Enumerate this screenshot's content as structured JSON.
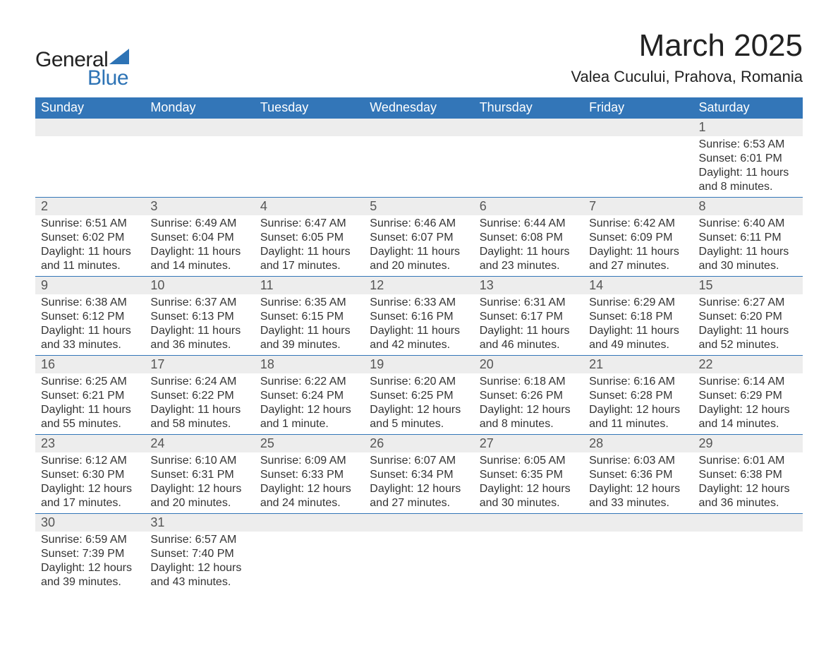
{
  "logo": {
    "text_general": "General",
    "text_blue": "Blue",
    "shape_color": "#2d73b5",
    "general_color": "#222222",
    "blue_color": "#2d73b5"
  },
  "header": {
    "month_title": "March 2025",
    "location": "Valea Cucului, Prahova, Romania",
    "title_fontsize": 44,
    "location_fontsize": 22,
    "title_color": "#222222"
  },
  "calendar": {
    "header_bg": "#3376b8",
    "header_fg": "#ffffff",
    "daynum_bg": "#ededed",
    "daynum_fg": "#555555",
    "border_color": "#3376b8",
    "text_color": "#333333",
    "days_of_week": [
      "Sunday",
      "Monday",
      "Tuesday",
      "Wednesday",
      "Thursday",
      "Friday",
      "Saturday"
    ],
    "weeks": [
      [
        null,
        null,
        null,
        null,
        null,
        null,
        {
          "n": "1",
          "sunrise": "Sunrise: 6:53 AM",
          "sunset": "Sunset: 6:01 PM",
          "daylight": "Daylight: 11 hours and 8 minutes."
        }
      ],
      [
        {
          "n": "2",
          "sunrise": "Sunrise: 6:51 AM",
          "sunset": "Sunset: 6:02 PM",
          "daylight": "Daylight: 11 hours and 11 minutes."
        },
        {
          "n": "3",
          "sunrise": "Sunrise: 6:49 AM",
          "sunset": "Sunset: 6:04 PM",
          "daylight": "Daylight: 11 hours and 14 minutes."
        },
        {
          "n": "4",
          "sunrise": "Sunrise: 6:47 AM",
          "sunset": "Sunset: 6:05 PM",
          "daylight": "Daylight: 11 hours and 17 minutes."
        },
        {
          "n": "5",
          "sunrise": "Sunrise: 6:46 AM",
          "sunset": "Sunset: 6:07 PM",
          "daylight": "Daylight: 11 hours and 20 minutes."
        },
        {
          "n": "6",
          "sunrise": "Sunrise: 6:44 AM",
          "sunset": "Sunset: 6:08 PM",
          "daylight": "Daylight: 11 hours and 23 minutes."
        },
        {
          "n": "7",
          "sunrise": "Sunrise: 6:42 AM",
          "sunset": "Sunset: 6:09 PM",
          "daylight": "Daylight: 11 hours and 27 minutes."
        },
        {
          "n": "8",
          "sunrise": "Sunrise: 6:40 AM",
          "sunset": "Sunset: 6:11 PM",
          "daylight": "Daylight: 11 hours and 30 minutes."
        }
      ],
      [
        {
          "n": "9",
          "sunrise": "Sunrise: 6:38 AM",
          "sunset": "Sunset: 6:12 PM",
          "daylight": "Daylight: 11 hours and 33 minutes."
        },
        {
          "n": "10",
          "sunrise": "Sunrise: 6:37 AM",
          "sunset": "Sunset: 6:13 PM",
          "daylight": "Daylight: 11 hours and 36 minutes."
        },
        {
          "n": "11",
          "sunrise": "Sunrise: 6:35 AM",
          "sunset": "Sunset: 6:15 PM",
          "daylight": "Daylight: 11 hours and 39 minutes."
        },
        {
          "n": "12",
          "sunrise": "Sunrise: 6:33 AM",
          "sunset": "Sunset: 6:16 PM",
          "daylight": "Daylight: 11 hours and 42 minutes."
        },
        {
          "n": "13",
          "sunrise": "Sunrise: 6:31 AM",
          "sunset": "Sunset: 6:17 PM",
          "daylight": "Daylight: 11 hours and 46 minutes."
        },
        {
          "n": "14",
          "sunrise": "Sunrise: 6:29 AM",
          "sunset": "Sunset: 6:18 PM",
          "daylight": "Daylight: 11 hours and 49 minutes."
        },
        {
          "n": "15",
          "sunrise": "Sunrise: 6:27 AM",
          "sunset": "Sunset: 6:20 PM",
          "daylight": "Daylight: 11 hours and 52 minutes."
        }
      ],
      [
        {
          "n": "16",
          "sunrise": "Sunrise: 6:25 AM",
          "sunset": "Sunset: 6:21 PM",
          "daylight": "Daylight: 11 hours and 55 minutes."
        },
        {
          "n": "17",
          "sunrise": "Sunrise: 6:24 AM",
          "sunset": "Sunset: 6:22 PM",
          "daylight": "Daylight: 11 hours and 58 minutes."
        },
        {
          "n": "18",
          "sunrise": "Sunrise: 6:22 AM",
          "sunset": "Sunset: 6:24 PM",
          "daylight": "Daylight: 12 hours and 1 minute."
        },
        {
          "n": "19",
          "sunrise": "Sunrise: 6:20 AM",
          "sunset": "Sunset: 6:25 PM",
          "daylight": "Daylight: 12 hours and 5 minutes."
        },
        {
          "n": "20",
          "sunrise": "Sunrise: 6:18 AM",
          "sunset": "Sunset: 6:26 PM",
          "daylight": "Daylight: 12 hours and 8 minutes."
        },
        {
          "n": "21",
          "sunrise": "Sunrise: 6:16 AM",
          "sunset": "Sunset: 6:28 PM",
          "daylight": "Daylight: 12 hours and 11 minutes."
        },
        {
          "n": "22",
          "sunrise": "Sunrise: 6:14 AM",
          "sunset": "Sunset: 6:29 PM",
          "daylight": "Daylight: 12 hours and 14 minutes."
        }
      ],
      [
        {
          "n": "23",
          "sunrise": "Sunrise: 6:12 AM",
          "sunset": "Sunset: 6:30 PM",
          "daylight": "Daylight: 12 hours and 17 minutes."
        },
        {
          "n": "24",
          "sunrise": "Sunrise: 6:10 AM",
          "sunset": "Sunset: 6:31 PM",
          "daylight": "Daylight: 12 hours and 20 minutes."
        },
        {
          "n": "25",
          "sunrise": "Sunrise: 6:09 AM",
          "sunset": "Sunset: 6:33 PM",
          "daylight": "Daylight: 12 hours and 24 minutes."
        },
        {
          "n": "26",
          "sunrise": "Sunrise: 6:07 AM",
          "sunset": "Sunset: 6:34 PM",
          "daylight": "Daylight: 12 hours and 27 minutes."
        },
        {
          "n": "27",
          "sunrise": "Sunrise: 6:05 AM",
          "sunset": "Sunset: 6:35 PM",
          "daylight": "Daylight: 12 hours and 30 minutes."
        },
        {
          "n": "28",
          "sunrise": "Sunrise: 6:03 AM",
          "sunset": "Sunset: 6:36 PM",
          "daylight": "Daylight: 12 hours and 33 minutes."
        },
        {
          "n": "29",
          "sunrise": "Sunrise: 6:01 AM",
          "sunset": "Sunset: 6:38 PM",
          "daylight": "Daylight: 12 hours and 36 minutes."
        }
      ],
      [
        {
          "n": "30",
          "sunrise": "Sunrise: 6:59 AM",
          "sunset": "Sunset: 7:39 PM",
          "daylight": "Daylight: 12 hours and 39 minutes."
        },
        {
          "n": "31",
          "sunrise": "Sunrise: 6:57 AM",
          "sunset": "Sunset: 7:40 PM",
          "daylight": "Daylight: 12 hours and 43 minutes."
        },
        null,
        null,
        null,
        null,
        null
      ]
    ]
  }
}
